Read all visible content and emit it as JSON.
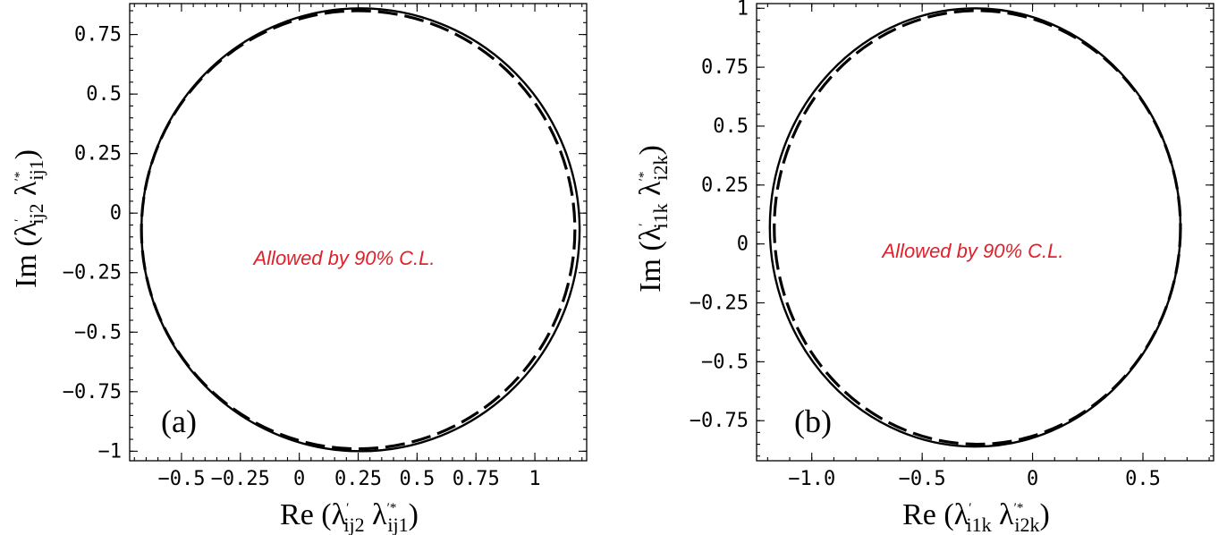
{
  "chart_data": [
    {
      "type": "line",
      "panel_label": "(a)",
      "annotation": "Allowed by 90% C.L.",
      "xlabel": {
        "prefix": "Re",
        "a": "ij2",
        "b": "ij1"
      },
      "ylabel": {
        "prefix": "Im",
        "a": "ij2",
        "b": "ij1"
      },
      "xlim": [
        -0.72,
        1.22
      ],
      "ylim": [
        -1.04,
        0.88
      ],
      "xticks": [
        {
          "value": -0.5,
          "label": "−0.5"
        },
        {
          "value": -0.25,
          "label": "−0.25"
        },
        {
          "value": 0,
          "label": "0"
        },
        {
          "value": 0.25,
          "label": "0.25"
        },
        {
          "value": 0.5,
          "label": "0.5"
        },
        {
          "value": 0.75,
          "label": "0.75"
        },
        {
          "value": 1,
          "label": "1"
        }
      ],
      "yticks": [
        {
          "value": 0.75,
          "label": "0.75"
        },
        {
          "value": 0.5,
          "label": "0.5"
        },
        {
          "value": 0.25,
          "label": "0.25"
        },
        {
          "value": 0,
          "label": "0"
        },
        {
          "value": -0.25,
          "label": "−0.25"
        },
        {
          "value": -0.5,
          "label": "−0.5"
        },
        {
          "value": -0.75,
          "label": "−0.75"
        },
        {
          "value": -1,
          "label": "−1"
        }
      ],
      "series": [
        {
          "style": "solid",
          "center": [
            0.26,
            -0.07
          ],
          "radius": 0.93
        },
        {
          "style": "dashed",
          "center": [
            0.25,
            -0.07
          ],
          "radius": 0.92
        }
      ]
    },
    {
      "type": "line",
      "panel_label": "(b)",
      "annotation": "Allowed by 90% C.L.",
      "xlabel": {
        "prefix": "Re",
        "a": "i1k",
        "b": "i2k"
      },
      "ylabel": {
        "prefix": "Im",
        "a": "i1k",
        "b": "i2k"
      },
      "xlim": [
        -1.25,
        0.82
      ],
      "ylim": [
        -0.92,
        1.02
      ],
      "xticks": [
        {
          "value": -1.0,
          "label": "−1.0"
        },
        {
          "value": -0.5,
          "label": "−0.5"
        },
        {
          "value": 0,
          "label": "0"
        },
        {
          "value": 0.5,
          "label": "0.5"
        }
      ],
      "yticks": [
        {
          "value": 1,
          "label": "1"
        },
        {
          "value": 0.75,
          "label": "0.75"
        },
        {
          "value": 0.5,
          "label": "0.5"
        },
        {
          "value": 0.25,
          "label": "0.25"
        },
        {
          "value": 0,
          "label": "0"
        },
        {
          "value": -0.25,
          "label": "−0.25"
        },
        {
          "value": -0.5,
          "label": "−0.5"
        },
        {
          "value": -0.75,
          "label": "−0.75"
        }
      ],
      "series": [
        {
          "style": "solid",
          "center": [
            -0.26,
            0.07
          ],
          "radius": 0.93
        },
        {
          "style": "dashed",
          "center": [
            -0.25,
            0.07
          ],
          "radius": 0.92
        }
      ]
    }
  ]
}
